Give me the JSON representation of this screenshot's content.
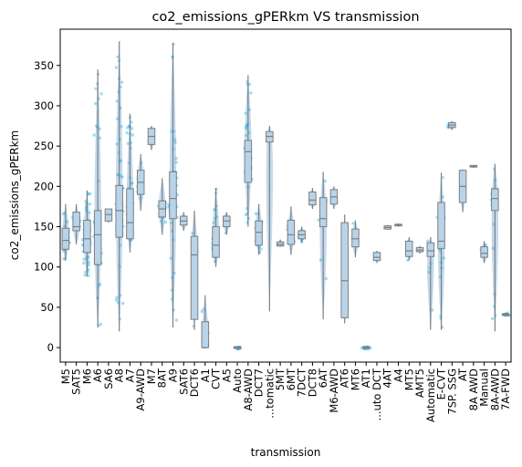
{
  "chart_data": {
    "type": "box",
    "title": "co2_emissions_gPERkm  VS  transmission",
    "xlabel": "transmission",
    "ylabel": "co2_emissions_gPERkm",
    "ylim": [
      -18,
      395
    ],
    "yticks": [
      0,
      50,
      100,
      150,
      200,
      250,
      300,
      350
    ],
    "grid": false,
    "legend": "none",
    "colors": {
      "box": "#b8d4ea",
      "points": "#29b6f6",
      "lines": "#7f7f7f",
      "axis": "#000000"
    },
    "categories": [
      "M5",
      "SAT5",
      "M6",
      "A6",
      "SA6",
      "A8",
      "A7",
      "A9-AWD",
      "M7",
      "8AT",
      "A9",
      "SAT6",
      "DCT6",
      "A1",
      "CVT",
      "A5",
      "Auto",
      "A8-AWD",
      "DCT7",
      "...tomatic",
      "5MT",
      "6MT",
      "7DCT",
      "DCT8",
      "6AT",
      "M6-AWD",
      "AT6",
      "MT6",
      "AT1",
      "...uto DCT",
      "4AT",
      "A4",
      "MT5",
      "AMT5",
      "Automatic",
      "E-CVT",
      "7SP. SSG",
      "AT",
      "8A AWD",
      "Manual",
      "8A-AWD",
      "7A-FWD"
    ],
    "boxes": [
      {
        "q1": 122,
        "median": 133,
        "q3": 148,
        "low": 108,
        "high": 178,
        "density": "medium"
      },
      {
        "q1": 145,
        "median": 150,
        "q3": 168,
        "low": 128,
        "high": 178,
        "density": "low"
      },
      {
        "q1": 118,
        "median": 135,
        "q3": 158,
        "low": 88,
        "high": 195,
        "density": "high"
      },
      {
        "q1": 103,
        "median": 140,
        "q3": 170,
        "low": 25,
        "high": 345,
        "density": "high"
      },
      {
        "q1": 157,
        "median": 165,
        "q3": 172,
        "low": 155,
        "high": 172,
        "density": "none"
      },
      {
        "q1": 137,
        "median": 170,
        "q3": 201,
        "low": 20,
        "high": 380,
        "density": "high"
      },
      {
        "q1": 135,
        "median": 155,
        "q3": 197,
        "low": 118,
        "high": 290,
        "density": "high"
      },
      {
        "q1": 190,
        "median": 205,
        "q3": 220,
        "low": 170,
        "high": 240,
        "density": "low"
      },
      {
        "q1": 252,
        "median": 262,
        "q3": 272,
        "low": 245,
        "high": 275,
        "density": "none"
      },
      {
        "q1": 162,
        "median": 172,
        "q3": 182,
        "low": 140,
        "high": 210,
        "density": "medium"
      },
      {
        "q1": 160,
        "median": 185,
        "q3": 218,
        "low": 25,
        "high": 378,
        "density": "high"
      },
      {
        "q1": 152,
        "median": 157,
        "q3": 163,
        "low": 145,
        "high": 168,
        "density": "none"
      },
      {
        "q1": 35,
        "median": 115,
        "q3": 138,
        "low": 22,
        "high": 170,
        "density": "low"
      },
      {
        "q1": 0,
        "median": 0,
        "q3": 32,
        "low": -1,
        "high": 65,
        "density": "low"
      },
      {
        "q1": 112,
        "median": 127,
        "q3": 150,
        "low": 100,
        "high": 198,
        "density": "medium"
      },
      {
        "q1": 150,
        "median": 157,
        "q3": 163,
        "low": 140,
        "high": 168,
        "density": "low"
      },
      {
        "q1": -1,
        "median": 0,
        "q3": 1,
        "low": -2,
        "high": 2,
        "density": "low"
      },
      {
        "q1": 205,
        "median": 243,
        "q3": 257,
        "low": 150,
        "high": 338,
        "density": "high"
      },
      {
        "q1": 127,
        "median": 143,
        "q3": 157,
        "low": 115,
        "high": 178,
        "density": "medium"
      },
      {
        "q1": 255,
        "median": 262,
        "q3": 268,
        "low": 45,
        "high": 275,
        "density": "none"
      },
      {
        "q1": 126,
        "median": 128,
        "q3": 131,
        "low": 125,
        "high": 134,
        "density": "none"
      },
      {
        "q1": 128,
        "median": 140,
        "q3": 158,
        "low": 115,
        "high": 175,
        "density": "low"
      },
      {
        "q1": 135,
        "median": 140,
        "q3": 145,
        "low": 130,
        "high": 150,
        "density": "low"
      },
      {
        "q1": 177,
        "median": 183,
        "q3": 193,
        "low": 172,
        "high": 198,
        "density": "none"
      },
      {
        "q1": 150,
        "median": 160,
        "q3": 186,
        "low": 35,
        "high": 218,
        "density": "low"
      },
      {
        "q1": 178,
        "median": 187,
        "q3": 196,
        "low": 172,
        "high": 200,
        "density": "none"
      },
      {
        "q1": 37,
        "median": 83,
        "q3": 155,
        "low": 30,
        "high": 165,
        "density": "low"
      },
      {
        "q1": 125,
        "median": 135,
        "q3": 147,
        "low": 112,
        "high": 158,
        "density": "low"
      },
      {
        "q1": -1,
        "median": 0,
        "q3": 1,
        "low": -2,
        "high": 2,
        "density": "low"
      },
      {
        "q1": 108,
        "median": 112,
        "q3": 118,
        "low": 105,
        "high": 120,
        "density": "none"
      },
      {
        "q1": 147,
        "median": 149,
        "q3": 151,
        "low": 146,
        "high": 152,
        "density": "none"
      },
      {
        "q1": 151,
        "median": 152,
        "q3": 153,
        "low": 150,
        "high": 154,
        "density": "none"
      },
      {
        "q1": 113,
        "median": 120,
        "q3": 132,
        "low": 108,
        "high": 137,
        "density": "low"
      },
      {
        "q1": 119,
        "median": 121,
        "q3": 124,
        "low": 117,
        "high": 126,
        "density": "none"
      },
      {
        "q1": 113,
        "median": 120,
        "q3": 130,
        "low": 22,
        "high": 137,
        "density": "low"
      },
      {
        "q1": 123,
        "median": 132,
        "q3": 180,
        "low": 22,
        "high": 217,
        "density": "medium"
      },
      {
        "q1": 273,
        "median": 276,
        "q3": 279,
        "low": 270,
        "high": 281,
        "density": "low"
      },
      {
        "q1": 180,
        "median": 200,
        "q3": 220,
        "low": 168,
        "high": 221,
        "density": "none"
      },
      {
        "q1": 224,
        "median": 225,
        "q3": 226,
        "low": 223,
        "high": 226,
        "density": "none"
      },
      {
        "q1": 112,
        "median": 117,
        "q3": 125,
        "low": 105,
        "high": 132,
        "density": "low"
      },
      {
        "q1": 170,
        "median": 185,
        "q3": 197,
        "low": 20,
        "high": 228,
        "density": "medium"
      },
      {
        "q1": 40,
        "median": 41,
        "q3": 42,
        "low": 39,
        "high": 43,
        "density": "low"
      }
    ]
  }
}
